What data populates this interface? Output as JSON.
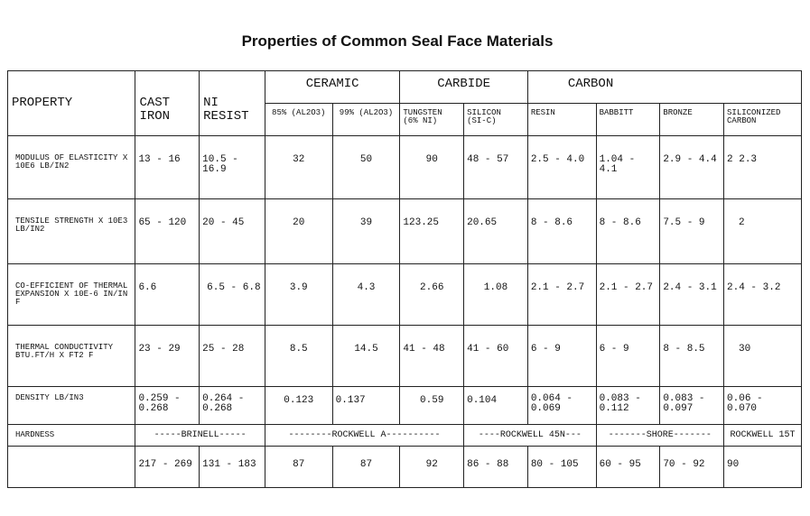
{
  "title": "Properties of Common Seal Face Materials",
  "headers": {
    "property": "PROPERTY",
    "cast_iron": "CAST IRON",
    "ni_resist": "NI RESIST",
    "ceramic": "CERAMIC",
    "carbide": "CARBIDE",
    "carbon": "CARBON",
    "sub": [
      "85% (AL2O3)",
      "99% (AL2O3)",
      "TUNGSTEN (6% NI)",
      "SILICON (SI-C)",
      "RESIN",
      "BABBITT",
      "BRONZE",
      "SILICONIZED CARBON"
    ]
  },
  "rows": [
    {
      "property": "MODULUS OF ELASTICITY X 10E6 LB/IN2",
      "values": [
        "13 - 16",
        "10.5 - 16.9",
        "32",
        "50",
        "90",
        "48 - 57",
        "2.5 - 4.0",
        "1.04 - 4.1",
        "2.9 - 4.4",
        "2 2.3"
      ]
    },
    {
      "property": "TENSILE STRENGTH X 10E3 LB/IN2",
      "values": [
        "65 - 120",
        "20 - 45",
        "20",
        "39",
        "123.25",
        "20.65",
        "8 - 8.6",
        "8 - 8.6",
        "7.5 - 9",
        "2"
      ]
    },
    {
      "property": "CO-EFFICIENT OF THERMAL EXPANSION X 10E-6 IN/IN F",
      "values": [
        "6.6",
        "6.5 - 6.8",
        "3.9",
        "4.3",
        "2.66",
        "1.08",
        "2.1 - 2.7",
        "2.1 - 2.7",
        "2.4 - 3.1",
        "2.4 - 3.2"
      ]
    },
    {
      "property": "THERMAL CONDUCTIVITY BTU.FT/H X FT2 F",
      "values": [
        "23 - 29",
        "25 - 28",
        "8.5",
        "14.5",
        "41 - 48",
        "41 - 60",
        "6 - 9",
        "6 - 9",
        "8 - 8.5",
        "30"
      ]
    },
    {
      "property": "DENSITY LB/IN3",
      "values": [
        "0.259 - 0.268",
        "0.264 - 0.268",
        "0.123",
        "0.137",
        "0.59",
        "0.104",
        "0.064 - 0.069",
        "0.083 - 0.112",
        "0.083 - 0.097",
        "0.06 - 0.070"
      ]
    }
  ],
  "hardness": {
    "label": "HARDNESS",
    "scales": [
      "-----BRINELL-----",
      "--------ROCKWELL A----------",
      "----ROCKWELL 45N---",
      "-------SHORE-------",
      "ROCKWELL 15T"
    ],
    "values": [
      "217 - 269",
      "131 - 183",
      "87",
      "87",
      "92",
      "86 - 88",
      "80 - 105",
      "60 - 95",
      "70 - 92",
      "90"
    ]
  }
}
